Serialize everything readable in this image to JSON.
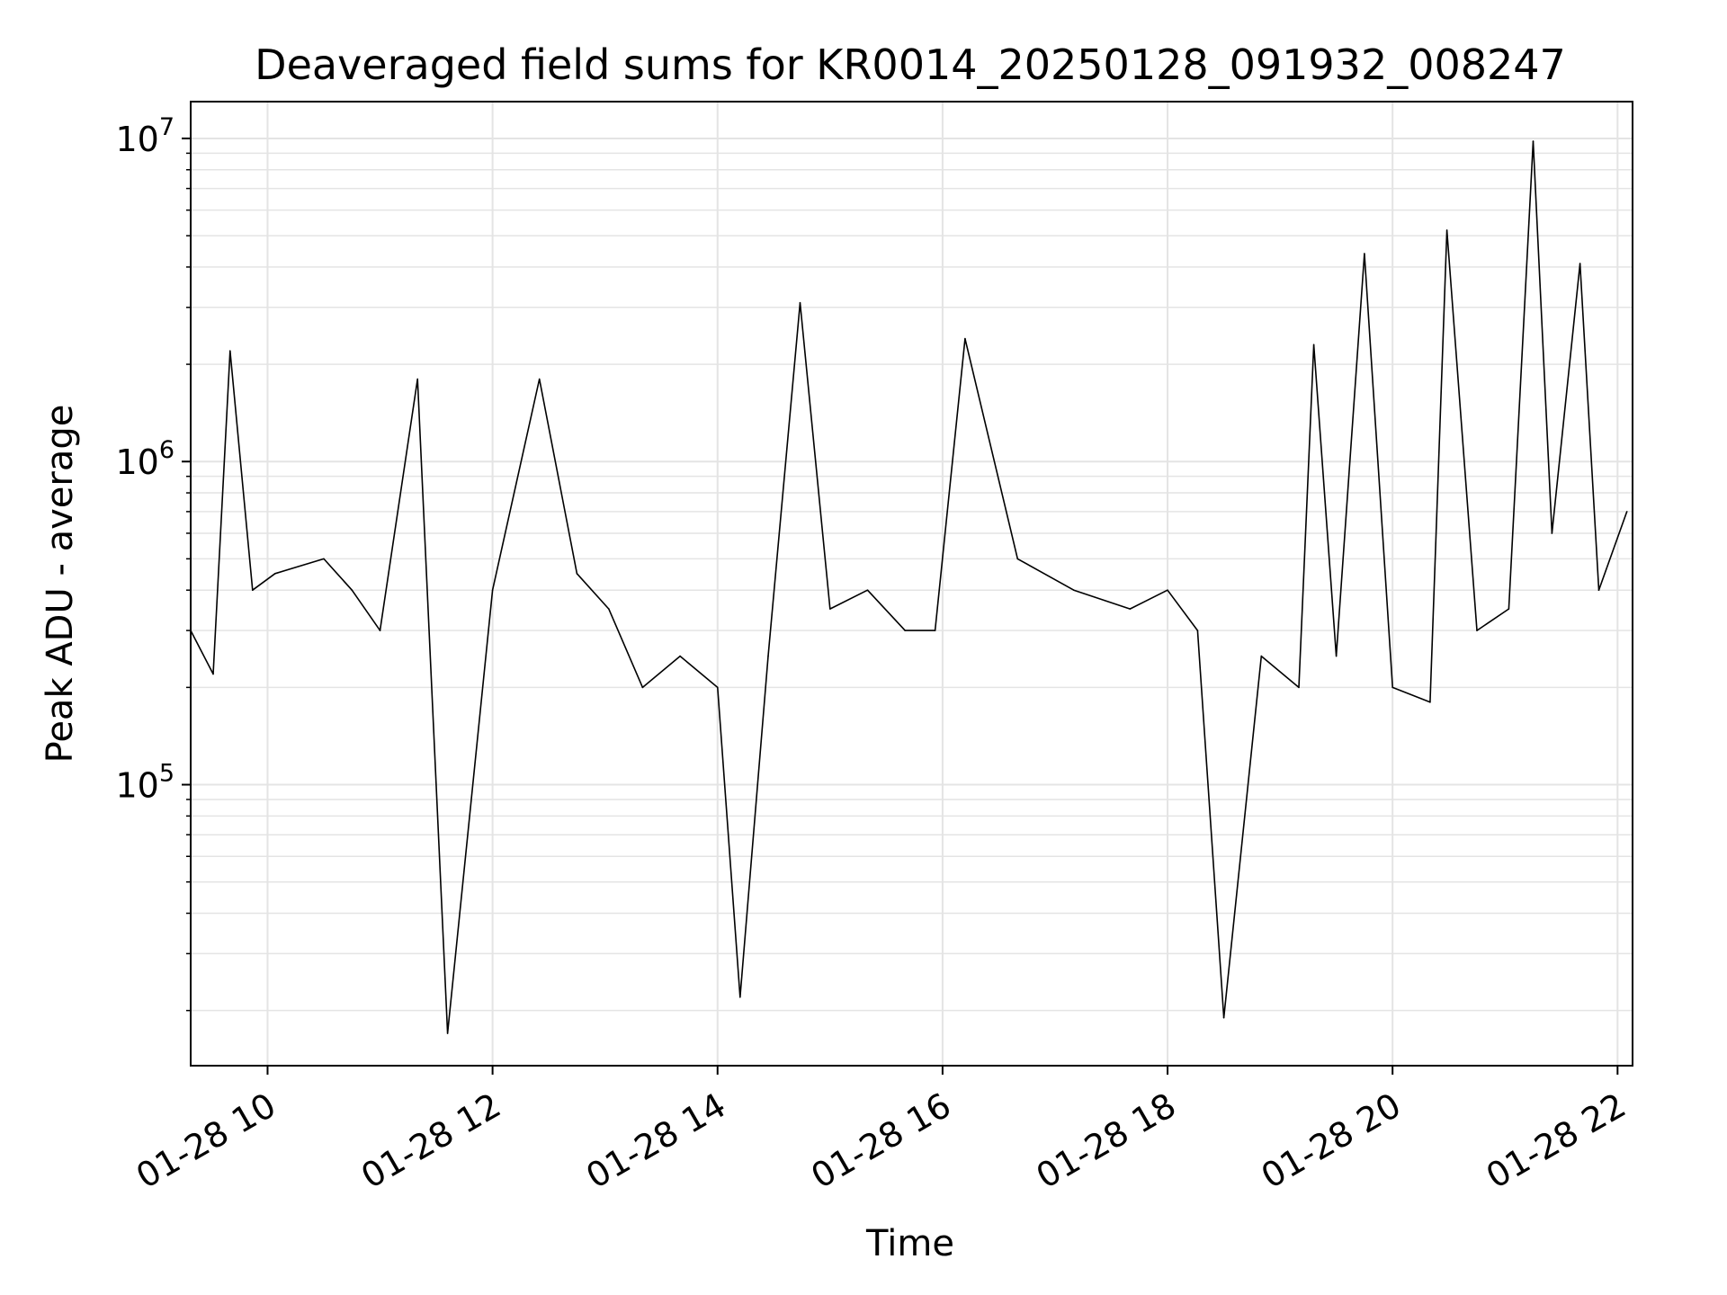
{
  "chart_data": {
    "type": "line",
    "title": "Deaveraged field sums for KR0014_20250128_091932_008247",
    "xlabel": "Time",
    "ylabel": "Peak ADU - average",
    "y_scale": "log",
    "ylim": [
      13500,
      13000000
    ],
    "xlim": [
      "2025-01-28 09:19",
      "2025-01-28 22:08"
    ],
    "x_ticks": [
      "01-28 10",
      "01-28 12",
      "01-28 14",
      "01-28 16",
      "01-28 18",
      "01-28 20",
      "01-28 22"
    ],
    "y_ticks": [
      {
        "base": "10",
        "exp": "5",
        "value": 100000
      },
      {
        "base": "10",
        "exp": "6",
        "value": 1000000
      },
      {
        "base": "10",
        "exp": "7",
        "value": 10000000
      }
    ],
    "grid": true,
    "line_color": "#000000",
    "series": [
      {
        "x": [
          "2025-01-28 09:19",
          "2025-01-28 09:31",
          "2025-01-28 09:40",
          "2025-01-28 09:52",
          "2025-01-28 10:04",
          "2025-01-28 10:30",
          "2025-01-28 10:45",
          "2025-01-28 11:00",
          "2025-01-28 11:20",
          "2025-01-28 11:36",
          "2025-01-28 12:00",
          "2025-01-28 12:25",
          "2025-01-28 12:45",
          "2025-01-28 13:02",
          "2025-01-28 13:20",
          "2025-01-28 13:40",
          "2025-01-28 14:00",
          "2025-01-28 14:12",
          "2025-01-28 14:27",
          "2025-01-28 14:44",
          "2025-01-28 15:00",
          "2025-01-28 15:20",
          "2025-01-28 15:40",
          "2025-01-28 15:56",
          "2025-01-28 16:12",
          "2025-01-28 16:40",
          "2025-01-28 17:10",
          "2025-01-28 17:40",
          "2025-01-28 18:00",
          "2025-01-28 18:16",
          "2025-01-28 18:30",
          "2025-01-28 18:50",
          "2025-01-28 19:10",
          "2025-01-28 19:18",
          "2025-01-28 19:30",
          "2025-01-28 19:45",
          "2025-01-28 20:00",
          "2025-01-28 20:20",
          "2025-01-28 20:29",
          "2025-01-28 20:45",
          "2025-01-28 21:02",
          "2025-01-28 21:15",
          "2025-01-28 21:25",
          "2025-01-28 21:40",
          "2025-01-28 21:50",
          "2025-01-28 22:05"
        ],
        "y": [
          300000,
          220000,
          2200000,
          400000,
          450000,
          500000,
          400000,
          300000,
          1800000,
          17000,
          400000,
          1800000,
          450000,
          350000,
          200000,
          250000,
          200000,
          22000,
          250000,
          3100000,
          350000,
          400000,
          300000,
          300000,
          2400000,
          500000,
          400000,
          350000,
          400000,
          300000,
          19000,
          250000,
          200000,
          2300000,
          250000,
          4400000,
          200000,
          180000,
          5200000,
          300000,
          350000,
          9800000,
          600000,
          4100000,
          400000,
          700000
        ]
      }
    ]
  }
}
